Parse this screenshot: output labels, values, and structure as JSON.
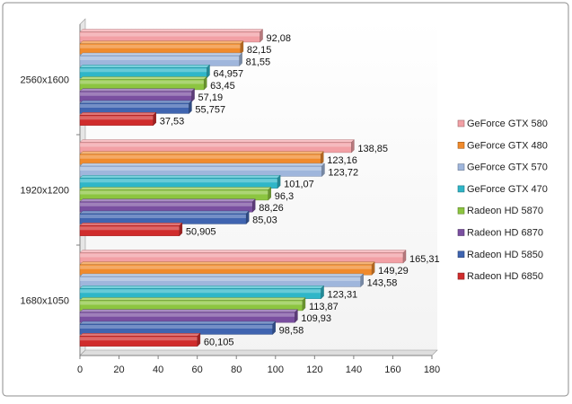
{
  "chart_data": {
    "type": "bar",
    "orientation": "horizontal",
    "title": "",
    "xlabel": "",
    "ylabel": "",
    "xlim": [
      0,
      180
    ],
    "xticks": [
      0,
      20,
      40,
      60,
      80,
      100,
      120,
      140,
      160,
      180
    ],
    "grid": false,
    "legend_position": "right",
    "categories": [
      "2560x1600",
      "1920x1200",
      "1680x1050"
    ],
    "series": [
      {
        "name": "GeForce GTX 580",
        "color": "#f2a0a5",
        "values": [
          92.08,
          138.85,
          165.31
        ],
        "labels": [
          "92,08",
          "138,85",
          "165,31"
        ]
      },
      {
        "name": "GeForce GTX 480",
        "color": "#f08a2c",
        "values": [
          82.15,
          123.16,
          149.29
        ],
        "labels": [
          "82,15",
          "123,16",
          "149,29"
        ]
      },
      {
        "name": "GeForce GTX 570",
        "color": "#9fb6dc",
        "values": [
          81.55,
          123.72,
          143.58
        ],
        "labels": [
          "81,55",
          "123,72",
          "143,58"
        ]
      },
      {
        "name": "GeForce GTX 470",
        "color": "#2fb6c8",
        "values": [
          64.957,
          101.07,
          123.31
        ],
        "labels": [
          "64,957",
          "101,07",
          "123,31"
        ]
      },
      {
        "name": "Radeon HD 5870",
        "color": "#8cc540",
        "values": [
          63.45,
          96.3,
          113.87
        ],
        "labels": [
          "63,45",
          "96,3",
          "113,87"
        ]
      },
      {
        "name": "Radeon HD 6870",
        "color": "#7a4fa0",
        "values": [
          57.19,
          88.26,
          109.93
        ],
        "labels": [
          "57,19",
          "88,26",
          "109,93"
        ]
      },
      {
        "name": "Radeon HD 5850",
        "color": "#3f64b0",
        "values": [
          55.757,
          85.03,
          98.58
        ],
        "labels": [
          "55,757",
          "85,03",
          "98,58"
        ]
      },
      {
        "name": "Radeon HD 6850",
        "color": "#d02c2c",
        "values": [
          37.53,
          50.905,
          60.105
        ],
        "labels": [
          "37,53",
          "50,905",
          "60,105"
        ]
      }
    ]
  }
}
